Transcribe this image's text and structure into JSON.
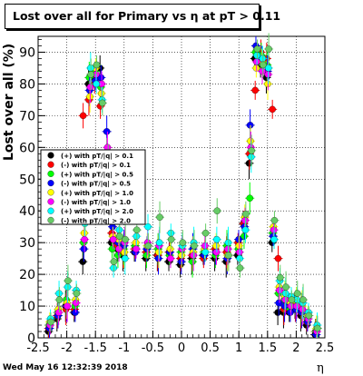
{
  "chart_data": {
    "type": "scatter",
    "title": "Lost over all for Primary vs   η at pT > 0.11",
    "xlabel": "η",
    "ylabel": "Lost over all (%)",
    "xlim": [
      -2.5,
      2.5
    ],
    "ylim": [
      0,
      95
    ],
    "xticks": [
      "-2.5",
      "-2",
      "-1.5",
      "-1",
      "-0.5",
      "0",
      "0.5",
      "1",
      "1.5",
      "2",
      "2.5"
    ],
    "xtick_values": [
      -2.5,
      -2,
      -1.5,
      -1,
      -0.5,
      0,
      0.5,
      1,
      1.5,
      2,
      2.5
    ],
    "yticks": [
      "0",
      "10",
      "20",
      "30",
      "40",
      "50",
      "60",
      "70",
      "80",
      "90"
    ],
    "ytick_values": [
      0,
      10,
      20,
      30,
      40,
      50,
      60,
      70,
      80,
      90
    ],
    "grid": true,
    "legend_position": "left-middle",
    "series": [
      {
        "name": "(+) with pT/|q| > 0.1",
        "color": "#000000",
        "marker": "circle",
        "x": [
          -2.3,
          -2.15,
          -2.0,
          -1.85,
          -1.7,
          -1.6,
          -1.5,
          -1.4,
          -1.3,
          -1.2,
          -1.1,
          -1.0,
          -0.8,
          -0.6,
          -0.4,
          -0.2,
          0.0,
          0.2,
          0.4,
          0.6,
          0.8,
          1.0,
          1.1,
          1.2,
          1.3,
          1.4,
          1.5,
          1.6,
          1.7,
          1.8,
          1.9,
          2.0,
          2.1,
          2.2,
          2.35
        ],
        "y": [
          2,
          6,
          10,
          8,
          24,
          80,
          82,
          85,
          48,
          30,
          28,
          26,
          27,
          25,
          26,
          24,
          23,
          25,
          26,
          25,
          24,
          26,
          36,
          55,
          88,
          86,
          82,
          30,
          8,
          8,
          8,
          10,
          7,
          4,
          1
        ]
      },
      {
        "name": "(-) with pT/|q| > 0.1",
        "color": "#ff0000",
        "marker": "circle",
        "x": [
          -2.3,
          -2.15,
          -2.0,
          -1.85,
          -1.7,
          -1.6,
          -1.5,
          -1.4,
          -1.3,
          -1.2,
          -1.1,
          -1.0,
          -0.8,
          -0.6,
          -0.4,
          -0.2,
          0.0,
          0.2,
          0.4,
          0.6,
          0.8,
          1.0,
          1.1,
          1.2,
          1.3,
          1.4,
          1.5,
          1.6,
          1.7,
          1.8,
          1.9,
          2.0,
          2.1,
          2.2,
          2.35
        ],
        "y": [
          3,
          7,
          9,
          9,
          70,
          75,
          80,
          73,
          45,
          33,
          29,
          27,
          28,
          27,
          26,
          27,
          25,
          26,
          25,
          28,
          27,
          30,
          36,
          58,
          78,
          90,
          88,
          72,
          25,
          9,
          10,
          9,
          8,
          5,
          2
        ]
      },
      {
        "name": "(+) with pT/|q| > 0.5",
        "color": "#00ff00",
        "marker": "circle",
        "x": [
          -2.3,
          -2.15,
          -2.0,
          -1.85,
          -1.7,
          -1.6,
          -1.5,
          -1.4,
          -1.3,
          -1.2,
          -1.1,
          -1.0,
          -0.8,
          -0.6,
          -0.4,
          -0.2,
          0.0,
          0.2,
          0.4,
          0.6,
          0.8,
          1.0,
          1.1,
          1.2,
          1.3,
          1.4,
          1.5,
          1.6,
          1.7,
          1.8,
          1.9,
          2.0,
          2.1,
          2.2,
          2.35
        ],
        "y": [
          4,
          8,
          12,
          10,
          30,
          82,
          84,
          79,
          52,
          28,
          26,
          28,
          29,
          26,
          28,
          26,
          27,
          24,
          27,
          26,
          29,
          28,
          32,
          44,
          90,
          89,
          86,
          33,
          14,
          12,
          9,
          11,
          9,
          6,
          2
        ]
      },
      {
        "name": "(-) with pT/|q| > 0.5",
        "color": "#0000ff",
        "marker": "circle",
        "x": [
          -2.3,
          -2.15,
          -2.0,
          -1.85,
          -1.7,
          -1.6,
          -1.5,
          -1.4,
          -1.3,
          -1.2,
          -1.1,
          -1.0,
          -0.8,
          -0.6,
          -0.4,
          -0.2,
          0.0,
          0.2,
          0.4,
          0.6,
          0.8,
          1.0,
          1.1,
          1.2,
          1.3,
          1.4,
          1.5,
          1.6,
          1.7,
          1.8,
          1.9,
          2.0,
          2.1,
          2.2,
          2.35
        ],
        "y": [
          3,
          7,
          10,
          8,
          28,
          78,
          81,
          82,
          65,
          35,
          30,
          29,
          27,
          28,
          25,
          27,
          24,
          28,
          26,
          27,
          25,
          31,
          35,
          67,
          92,
          88,
          84,
          32,
          11,
          10,
          8,
          9,
          8,
          5,
          1
        ]
      },
      {
        "name": "(+) with pT/|q| > 1.0",
        "color": "#ffff00",
        "marker": "circle",
        "x": [
          -2.3,
          -2.15,
          -2.0,
          -1.85,
          -1.7,
          -1.6,
          -1.5,
          -1.4,
          -1.3,
          -1.2,
          -1.1,
          -1.0,
          -0.8,
          -0.6,
          -0.4,
          -0.2,
          0.0,
          0.2,
          0.4,
          0.6,
          0.8,
          1.0,
          1.1,
          1.2,
          1.3,
          1.4,
          1.5,
          1.6,
          1.7,
          1.8,
          1.9,
          2.0,
          2.1,
          2.2,
          2.35
        ],
        "y": [
          5,
          9,
          11,
          12,
          33,
          76,
          85,
          77,
          58,
          32,
          31,
          27,
          30,
          29,
          27,
          28,
          26,
          27,
          28,
          29,
          26,
          29,
          38,
          62,
          85,
          87,
          80,
          35,
          16,
          13,
          11,
          12,
          10,
          7,
          3
        ]
      },
      {
        "name": "(-) with pT/|q| > 1.0",
        "color": "#ff00ff",
        "marker": "circle",
        "x": [
          -2.3,
          -2.15,
          -2.0,
          -1.85,
          -1.7,
          -1.6,
          -1.5,
          -1.4,
          -1.3,
          -1.2,
          -1.1,
          -1.0,
          -0.8,
          -0.6,
          -0.4,
          -0.2,
          0.0,
          0.2,
          0.4,
          0.6,
          0.8,
          1.0,
          1.1,
          1.2,
          1.3,
          1.4,
          1.5,
          1.6,
          1.7,
          1.8,
          1.9,
          2.0,
          2.1,
          2.2,
          2.35
        ],
        "y": [
          4,
          8,
          10,
          11,
          31,
          79,
          83,
          80,
          60,
          31,
          28,
          30,
          28,
          30,
          29,
          25,
          28,
          26,
          29,
          27,
          28,
          27,
          37,
          60,
          87,
          84,
          83,
          34,
          15,
          12,
          10,
          10,
          9,
          6,
          2
        ]
      },
      {
        "name": "(+) with pT/|q| > 2.0",
        "color": "#00ffff",
        "marker": "circle",
        "x": [
          -2.3,
          -2.15,
          -2.0,
          -1.85,
          -1.7,
          -1.6,
          -1.5,
          -1.4,
          -1.3,
          -1.2,
          -1.1,
          -1.0,
          -0.8,
          -0.6,
          -0.4,
          -0.2,
          0.0,
          0.2,
          0.4,
          0.6,
          0.8,
          1.0,
          1.1,
          1.2,
          1.3,
          1.4,
          1.5,
          1.6,
          1.7,
          1.8,
          1.9,
          2.0,
          2.1,
          2.2,
          2.35
        ],
        "y": [
          6,
          14,
          16,
          15,
          36,
          85,
          80,
          75,
          47,
          22,
          34,
          25,
          32,
          35,
          30,
          33,
          29,
          30,
          27,
          31,
          30,
          25,
          34,
          57,
          89,
          88,
          85,
          31,
          18,
          14,
          13,
          12,
          11,
          8,
          4
        ]
      },
      {
        "name": "(-) with pT/|q| > 2.0",
        "color": "#66cc66",
        "marker": "circle",
        "x": [
          -2.3,
          -2.15,
          -2.0,
          -1.85,
          -1.7,
          -1.6,
          -1.5,
          -1.4,
          -1.3,
          -1.2,
          -1.1,
          -1.0,
          -0.8,
          -0.6,
          -0.4,
          -0.2,
          0.0,
          0.2,
          0.4,
          0.6,
          0.8,
          1.0,
          1.1,
          1.2,
          1.3,
          1.4,
          1.5,
          1.6,
          1.7,
          1.8,
          1.9,
          2.0,
          2.1,
          2.2,
          2.35
        ],
        "y": [
          5,
          12,
          18,
          14,
          38,
          83,
          86,
          74,
          56,
          24,
          32,
          31,
          34,
          29,
          38,
          31,
          30,
          29,
          33,
          40,
          26,
          22,
          39,
          59,
          91,
          86,
          91,
          37,
          19,
          16,
          12,
          14,
          12,
          7,
          3
        ]
      }
    ]
  },
  "footer": {
    "timestamp": "Wed May 16 12:32:39 2018"
  }
}
